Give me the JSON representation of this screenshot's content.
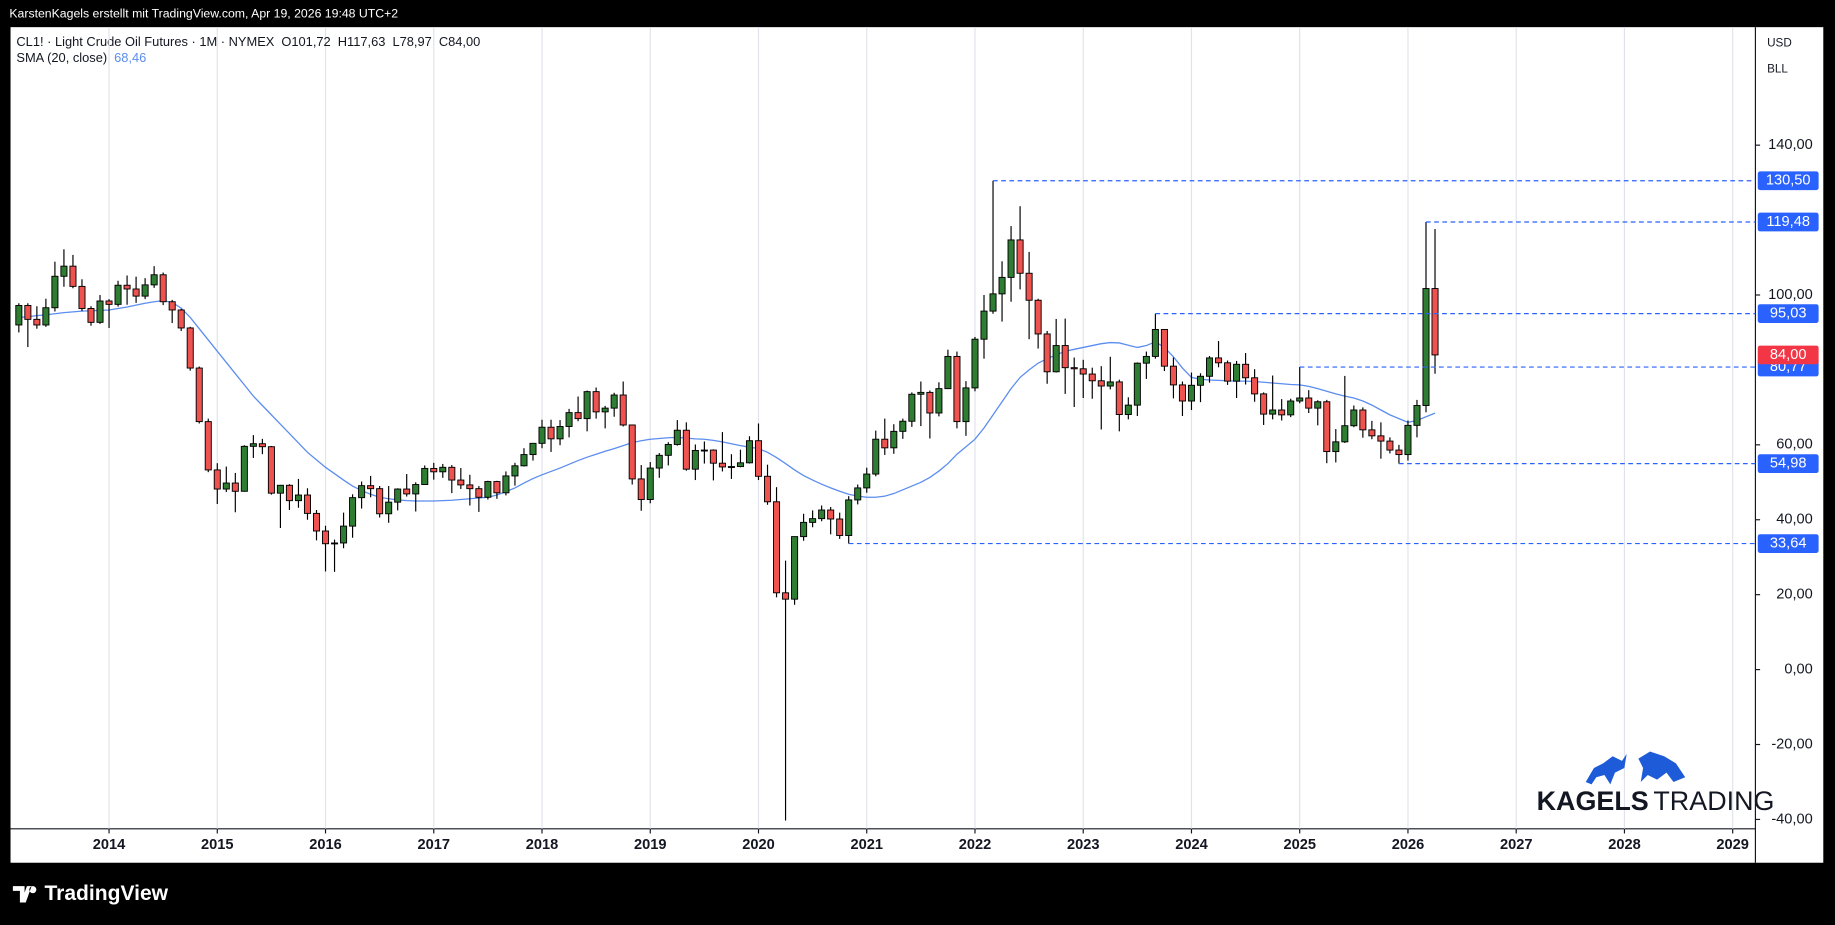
{
  "chart_data": {
    "type": "candlestick",
    "caption": "KarstenKagels erstellt mit TradingView.com, Apr 19, 2026 19:48 UTC+2",
    "title": "CL1! · Light Crude Oil Futures · 1M · NYMEX",
    "ohlc_header": [
      "O101,72",
      "H117,63",
      "L78,97",
      "C84,00"
    ],
    "currency": "USD",
    "unit": "BLL",
    "brand": "TradingView",
    "watermark": [
      "KAGELS",
      "TRADING"
    ],
    "up_color": "#2e7d32",
    "down_color": "#ef5350",
    "grid": "vertical",
    "xlim": [
      2013.09,
      2029.21
    ],
    "xticks": [
      2014,
      2015,
      2016,
      2017,
      2018,
      2019,
      2020,
      2021,
      2022,
      2023,
      2024,
      2025,
      2026,
      2027,
      2028,
      2029
    ],
    "ylim": [
      -42.5,
      171.5
    ],
    "yticks": [
      {
        "value": -40,
        "label": "-40,00"
      },
      {
        "value": -20,
        "label": "-20,00"
      },
      {
        "value": 0,
        "label": "0,00"
      },
      {
        "value": 20,
        "label": "20,00"
      },
      {
        "value": 40,
        "label": "40,00"
      },
      {
        "value": 60,
        "label": "60,00"
      },
      {
        "value": 100,
        "label": "100,00"
      },
      {
        "value": 140,
        "label": "140,00"
      }
    ],
    "x": [
      "2013-03",
      "2013-04",
      "2013-05",
      "2013-06",
      "2013-07",
      "2013-08",
      "2013-09",
      "2013-10",
      "2013-11",
      "2013-12",
      "2014-01",
      "2014-02",
      "2014-03",
      "2014-04",
      "2014-05",
      "2014-06",
      "2014-07",
      "2014-08",
      "2014-09",
      "2014-10",
      "2014-11",
      "2014-12",
      "2015-01",
      "2015-02",
      "2015-03",
      "2015-04",
      "2015-05",
      "2015-06",
      "2015-07",
      "2015-08",
      "2015-09",
      "2015-10",
      "2015-11",
      "2015-12",
      "2016-01",
      "2016-02",
      "2016-03",
      "2016-04",
      "2016-05",
      "2016-06",
      "2016-07",
      "2016-08",
      "2016-09",
      "2016-10",
      "2016-11",
      "2016-12",
      "2017-01",
      "2017-02",
      "2017-03",
      "2017-04",
      "2017-05",
      "2017-06",
      "2017-07",
      "2017-08",
      "2017-09",
      "2017-10",
      "2017-11",
      "2017-12",
      "2018-01",
      "2018-02",
      "2018-03",
      "2018-04",
      "2018-05",
      "2018-06",
      "2018-07",
      "2018-08",
      "2018-09",
      "2018-10",
      "2018-11",
      "2018-12",
      "2019-01",
      "2019-02",
      "2019-03",
      "2019-04",
      "2019-05",
      "2019-06",
      "2019-07",
      "2019-08",
      "2019-09",
      "2019-10",
      "2019-11",
      "2019-12",
      "2020-01",
      "2020-02",
      "2020-03",
      "2020-04",
      "2020-05",
      "2020-06",
      "2020-07",
      "2020-08",
      "2020-09",
      "2020-10",
      "2020-11",
      "2020-12",
      "2021-01",
      "2021-02",
      "2021-03",
      "2021-04",
      "2021-05",
      "2021-06",
      "2021-07",
      "2021-08",
      "2021-09",
      "2021-10",
      "2021-11",
      "2021-12",
      "2022-01",
      "2022-02",
      "2022-03",
      "2022-04",
      "2022-05",
      "2022-06",
      "2022-07",
      "2022-08",
      "2022-09",
      "2022-10",
      "2022-11",
      "2022-12",
      "2023-01",
      "2023-02",
      "2023-03",
      "2023-04",
      "2023-05",
      "2023-06",
      "2023-07",
      "2023-08",
      "2023-09",
      "2023-10",
      "2023-11",
      "2023-12",
      "2024-01",
      "2024-02",
      "2024-03",
      "2024-04",
      "2024-05",
      "2024-06",
      "2024-07",
      "2024-08",
      "2024-09",
      "2024-10",
      "2024-11",
      "2024-12",
      "2025-01",
      "2025-02",
      "2025-03",
      "2025-04",
      "2025-05",
      "2025-06",
      "2025-07",
      "2025-08",
      "2025-09",
      "2025-10",
      "2025-11",
      "2025-12",
      "2026-01",
      "2026-02",
      "2026-03",
      "2026-04"
    ],
    "ohlc": [
      [
        92.0,
        97.8,
        90.0,
        97.2
      ],
      [
        97.2,
        97.8,
        86.1,
        93.5
      ],
      [
        93.5,
        97.0,
        91.0,
        92.0
      ],
      [
        92.0,
        99.0,
        91.5,
        96.6
      ],
      [
        96.6,
        108.9,
        95.6,
        105.0
      ],
      [
        105.0,
        112.2,
        102.2,
        107.7
      ],
      [
        107.7,
        110.7,
        101.8,
        102.3
      ],
      [
        102.3,
        104.2,
        95.7,
        96.4
      ],
      [
        96.4,
        97.0,
        91.8,
        92.7
      ],
      [
        92.7,
        100.0,
        92.3,
        98.4
      ],
      [
        98.4,
        98.9,
        91.2,
        97.5
      ],
      [
        97.5,
        103.8,
        96.9,
        102.6
      ],
      [
        102.6,
        105.2,
        97.4,
        101.6
      ],
      [
        101.6,
        104.9,
        97.9,
        99.7
      ],
      [
        99.7,
        104.5,
        98.9,
        102.7
      ],
      [
        102.7,
        107.7,
        101.9,
        105.4
      ],
      [
        105.4,
        106.0,
        97.3,
        98.2
      ],
      [
        98.2,
        98.7,
        92.5,
        96.0
      ],
      [
        96.0,
        96.3,
        90.4,
        91.2
      ],
      [
        91.2,
        91.5,
        79.8,
        80.5
      ],
      [
        80.5,
        80.9,
        65.7,
        66.2
      ],
      [
        66.2,
        67.0,
        52.7,
        53.3
      ],
      [
        53.3,
        55.1,
        44.2,
        48.2
      ],
      [
        48.2,
        54.2,
        47.4,
        49.8
      ],
      [
        49.8,
        52.5,
        42.0,
        47.6
      ],
      [
        47.6,
        59.9,
        47.5,
        59.6
      ],
      [
        59.6,
        62.6,
        56.5,
        60.3
      ],
      [
        60.3,
        61.6,
        57.5,
        59.5
      ],
      [
        59.5,
        59.7,
        46.7,
        47.1
      ],
      [
        47.1,
        49.3,
        37.8,
        49.2
      ],
      [
        49.2,
        49.5,
        42.6,
        45.1
      ],
      [
        45.1,
        50.9,
        43.2,
        46.6
      ],
      [
        46.6,
        48.4,
        40.0,
        41.7
      ],
      [
        41.7,
        42.6,
        34.5,
        37.0
      ],
      [
        37.0,
        38.4,
        26.2,
        33.6
      ],
      [
        33.6,
        34.7,
        26.1,
        33.8
      ],
      [
        33.8,
        41.9,
        32.4,
        38.3
      ],
      [
        38.3,
        46.8,
        35.2,
        45.9
      ],
      [
        45.9,
        50.2,
        43.0,
        49.1
      ],
      [
        49.1,
        51.7,
        46.0,
        48.3
      ],
      [
        48.3,
        49.0,
        40.6,
        41.6
      ],
      [
        41.6,
        49.0,
        39.2,
        44.7
      ],
      [
        44.7,
        48.4,
        42.5,
        48.2
      ],
      [
        48.2,
        52.2,
        46.2,
        46.9
      ],
      [
        46.9,
        50.0,
        42.2,
        49.4
      ],
      [
        49.4,
        54.5,
        49.3,
        53.7
      ],
      [
        53.7,
        55.2,
        50.7,
        52.8
      ],
      [
        52.8,
        54.9,
        51.2,
        54.0
      ],
      [
        54.0,
        54.6,
        47.1,
        50.6
      ],
      [
        50.6,
        53.8,
        48.2,
        49.3
      ],
      [
        49.3,
        52.0,
        43.8,
        48.3
      ],
      [
        48.3,
        49.0,
        42.1,
        46.0
      ],
      [
        46.0,
        50.4,
        45.4,
        50.2
      ],
      [
        50.2,
        50.4,
        45.6,
        47.2
      ],
      [
        47.2,
        52.9,
        46.5,
        51.7
      ],
      [
        51.7,
        55.2,
        49.1,
        54.4
      ],
      [
        54.4,
        59.1,
        54.2,
        57.4
      ],
      [
        57.4,
        60.5,
        55.8,
        60.4
      ],
      [
        60.4,
        66.7,
        59.1,
        64.7
      ],
      [
        64.7,
        66.7,
        58.1,
        61.6
      ],
      [
        61.6,
        66.6,
        59.9,
        64.9
      ],
      [
        64.9,
        69.6,
        62.0,
        68.6
      ],
      [
        68.6,
        72.9,
        66.3,
        67.0
      ],
      [
        67.0,
        74.5,
        63.6,
        74.2
      ],
      [
        74.2,
        75.3,
        67.0,
        68.8
      ],
      [
        68.8,
        70.4,
        64.4,
        69.8
      ],
      [
        69.8,
        73.9,
        67.5,
        73.3
      ],
      [
        73.3,
        76.9,
        64.9,
        65.3
      ],
      [
        65.3,
        65.4,
        49.4,
        50.9
      ],
      [
        50.9,
        54.6,
        42.4,
        45.4
      ],
      [
        45.4,
        55.4,
        44.4,
        53.8
      ],
      [
        53.8,
        57.8,
        51.2,
        57.2
      ],
      [
        57.2,
        60.7,
        54.5,
        60.1
      ],
      [
        60.1,
        66.6,
        59.8,
        63.9
      ],
      [
        63.9,
        66.0,
        53.1,
        53.5
      ],
      [
        53.5,
        60.1,
        50.6,
        58.5
      ],
      [
        58.5,
        60.9,
        55.0,
        58.6
      ],
      [
        58.6,
        58.8,
        50.5,
        55.1
      ],
      [
        55.1,
        63.4,
        52.9,
        54.1
      ],
      [
        54.1,
        57.5,
        50.9,
        54.2
      ],
      [
        54.2,
        58.7,
        54.0,
        55.2
      ],
      [
        55.2,
        62.3,
        55.0,
        61.1
      ],
      [
        61.1,
        65.7,
        50.6,
        51.6
      ],
      [
        51.6,
        54.7,
        44.0,
        44.8
      ],
      [
        44.8,
        48.7,
        19.3,
        20.5
      ],
      [
        20.5,
        29.1,
        -40.3,
        18.8
      ],
      [
        18.8,
        35.5,
        17.3,
        35.5
      ],
      [
        35.5,
        41.6,
        34.4,
        39.3
      ],
      [
        39.3,
        42.5,
        38.0,
        40.3
      ],
      [
        40.3,
        43.8,
        39.6,
        42.6
      ],
      [
        42.6,
        43.4,
        36.1,
        40.2
      ],
      [
        40.2,
        41.9,
        34.9,
        35.8
      ],
      [
        35.8,
        46.3,
        33.64,
        45.3
      ],
      [
        45.3,
        49.4,
        44.1,
        48.5
      ],
      [
        48.5,
        53.9,
        47.2,
        52.2
      ],
      [
        52.2,
        63.8,
        51.6,
        61.5
      ],
      [
        61.5,
        67.0,
        57.3,
        59.2
      ],
      [
        59.2,
        65.5,
        57.6,
        63.6
      ],
      [
        63.6,
        67.0,
        61.6,
        66.3
      ],
      [
        66.3,
        74.0,
        64.8,
        73.5
      ],
      [
        73.5,
        76.9,
        65.0,
        74.0
      ],
      [
        74.0,
        74.5,
        61.7,
        68.5
      ],
      [
        68.5,
        76.7,
        67.6,
        75.0
      ],
      [
        75.0,
        85.4,
        74.9,
        83.6
      ],
      [
        83.6,
        84.9,
        64.4,
        66.2
      ],
      [
        66.2,
        77.0,
        62.4,
        75.2
      ],
      [
        75.2,
        88.8,
        74.3,
        88.2
      ],
      [
        88.2,
        100.0,
        83.0,
        95.7
      ],
      [
        95.7,
        130.5,
        95.0,
        100.3
      ],
      [
        100.3,
        109.0,
        92.9,
        104.7
      ],
      [
        104.7,
        118.4,
        98.2,
        114.7
      ],
      [
        114.7,
        123.7,
        101.5,
        105.8
      ],
      [
        105.8,
        111.5,
        88.2,
        98.6
      ],
      [
        98.6,
        99.0,
        85.7,
        89.6
      ],
      [
        89.6,
        90.4,
        76.3,
        79.5
      ],
      [
        79.5,
        93.6,
        79.3,
        86.5
      ],
      [
        86.5,
        93.7,
        73.6,
        80.6
      ],
      [
        80.6,
        83.3,
        70.1,
        80.3
      ],
      [
        80.3,
        82.7,
        72.5,
        78.9
      ],
      [
        78.9,
        80.6,
        72.3,
        77.1
      ],
      [
        77.1,
        81.0,
        64.1,
        75.7
      ],
      [
        75.7,
        83.5,
        74.8,
        76.8
      ],
      [
        76.8,
        77.4,
        63.6,
        68.1
      ],
      [
        68.1,
        72.7,
        66.8,
        70.6
      ],
      [
        70.6,
        82.0,
        67.7,
        81.8
      ],
      [
        81.8,
        84.9,
        77.6,
        83.6
      ],
      [
        83.6,
        95.03,
        83.0,
        90.8
      ],
      [
        90.8,
        90.9,
        79.7,
        81.0
      ],
      [
        81.0,
        83.3,
        72.4,
        76.0
      ],
      [
        76.0,
        76.9,
        67.7,
        71.7
      ],
      [
        71.7,
        79.3,
        69.3,
        75.9
      ],
      [
        75.9,
        79.1,
        71.4,
        78.3
      ],
      [
        78.3,
        83.7,
        76.6,
        83.2
      ],
      [
        83.2,
        87.7,
        80.7,
        81.9
      ],
      [
        81.9,
        82.5,
        76.0,
        77.0
      ],
      [
        77.0,
        82.4,
        72.5,
        81.5
      ],
      [
        81.5,
        84.5,
        76.1,
        77.9
      ],
      [
        77.9,
        80.2,
        71.5,
        73.6
      ],
      [
        73.6,
        74.0,
        65.3,
        68.2
      ],
      [
        68.2,
        78.5,
        66.8,
        69.3
      ],
      [
        69.3,
        72.2,
        66.5,
        68.0
      ],
      [
        68.0,
        72.3,
        67.4,
        71.7
      ],
      [
        71.7,
        80.77,
        71.1,
        72.5
      ],
      [
        72.5,
        74.6,
        68.5,
        69.8
      ],
      [
        69.8,
        71.9,
        65.2,
        71.5
      ],
      [
        71.5,
        72.0,
        55.1,
        58.2
      ],
      [
        58.2,
        64.2,
        55.3,
        60.8
      ],
      [
        60.8,
        78.4,
        60.5,
        65.1
      ],
      [
        65.1,
        70.5,
        64.7,
        69.3
      ],
      [
        69.3,
        70.0,
        61.9,
        64.0
      ],
      [
        64.0,
        66.4,
        61.5,
        62.4
      ],
      [
        62.4,
        66.0,
        56.3,
        61.0
      ],
      [
        61.0,
        62.0,
        57.7,
        58.6
      ],
      [
        58.6,
        60.0,
        54.98,
        57.4
      ],
      [
        57.4,
        66.5,
        55.8,
        65.2
      ],
      [
        65.2,
        72.0,
        62.0,
        70.5
      ],
      [
        70.5,
        119.48,
        68.7,
        101.72
      ],
      [
        101.72,
        117.63,
        78.97,
        84.0
      ]
    ],
    "sma": {
      "name": "SMA (20, close)",
      "last_label": "68,46",
      "color": "#5b8def",
      "values": [
        94.0,
        94.2,
        94.5,
        94.7,
        95.0,
        95.3,
        95.5,
        95.7,
        95.8,
        95.9,
        96.0,
        96.4,
        96.8,
        97.3,
        97.8,
        98.2,
        98.5,
        98.0,
        96.5,
        94.0,
        91.0,
        88.0,
        85.0,
        82.0,
        79.0,
        76.0,
        73.0,
        70.5,
        68.0,
        65.5,
        63.0,
        60.5,
        58.0,
        56.0,
        54.0,
        52.3,
        50.6,
        49.0,
        47.8,
        46.8,
        46.0,
        45.6,
        45.3,
        45.1,
        45.0,
        45.0,
        45.0,
        45.1,
        45.2,
        45.4,
        45.6,
        45.8,
        46.0,
        46.6,
        47.5,
        48.5,
        49.8,
        51.0,
        52.0,
        52.9,
        53.8,
        54.8,
        55.8,
        56.7,
        57.5,
        58.3,
        59.0,
        59.8,
        60.6,
        61.1,
        61.5,
        61.7,
        61.9,
        62.0,
        61.8,
        61.6,
        61.5,
        61.2,
        60.8,
        60.3,
        59.8,
        59.4,
        59.0,
        58.0,
        56.6,
        55.0,
        53.3,
        51.8,
        50.6,
        49.5,
        48.5,
        47.6,
        46.8,
        46.3,
        46.0,
        46.0,
        46.3,
        47.0,
        48.0,
        49.0,
        50.0,
        51.3,
        53.0,
        55.0,
        57.5,
        59.5,
        61.5,
        64.5,
        68.0,
        71.5,
        75.0,
        78.0,
        80.0,
        81.8,
        83.0,
        84.0,
        85.0,
        85.5,
        86.0,
        86.5,
        87.0,
        87.3,
        87.2,
        86.6,
        86.0,
        86.5,
        87.5,
        86.0,
        83.5,
        80.5,
        78.0,
        77.5,
        77.3,
        77.2,
        77.1,
        77.0,
        77.0,
        76.9,
        76.7,
        76.5,
        76.3,
        76.1,
        76.0,
        75.6,
        75.0,
        74.3,
        73.6,
        73.0,
        72.5,
        71.7,
        70.6,
        69.3,
        68.0,
        67.0,
        66.0,
        66.5,
        67.5,
        68.46
      ]
    },
    "levels": [
      {
        "value": 130.5,
        "label": "130,50",
        "from": "2022-03"
      },
      {
        "value": 119.48,
        "label": "119,48",
        "from": "2026-03"
      },
      {
        "value": 95.03,
        "label": "95,03",
        "from": "2023-09"
      },
      {
        "value": 80.77,
        "label": "80,77",
        "from": "2025-01"
      },
      {
        "value": 54.98,
        "label": "54,98",
        "from": "2025-12"
      },
      {
        "value": 33.64,
        "label": "33,64",
        "from": "2020-11"
      }
    ],
    "level_color": "#2962ff",
    "last_price": {
      "value": 84,
      "label": "84,00",
      "color": "#f23645"
    }
  }
}
